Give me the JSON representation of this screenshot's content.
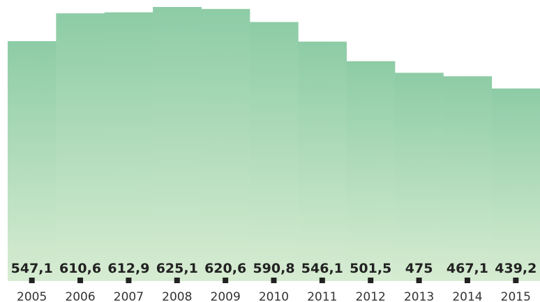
{
  "chart_data": {
    "type": "bar",
    "categories": [
      "2005",
      "2006",
      "2007",
      "2008",
      "2009",
      "2010",
      "2011",
      "2012",
      "2013",
      "2014",
      "2015"
    ],
    "values": [
      547.1,
      610.6,
      612.9,
      625.1,
      620.6,
      590.8,
      546.1,
      501.5,
      475,
      467.1,
      439.2
    ],
    "value_labels": [
      "547,1",
      "610,6",
      "612,9",
      "625,1",
      "620,6",
      "590,8",
      "546,1",
      "501,5",
      "475",
      "467,1",
      "439,2"
    ],
    "title": "",
    "xlabel": "",
    "ylabel": "",
    "ylim": [
      0,
      640
    ],
    "grid": false,
    "legend": "none",
    "colors": {
      "bar_top": "#8dcca6",
      "bar_bottom": "#d7ecd2",
      "tick_marker": "#222222",
      "value_text": "#222222",
      "year_text": "#333333"
    }
  }
}
